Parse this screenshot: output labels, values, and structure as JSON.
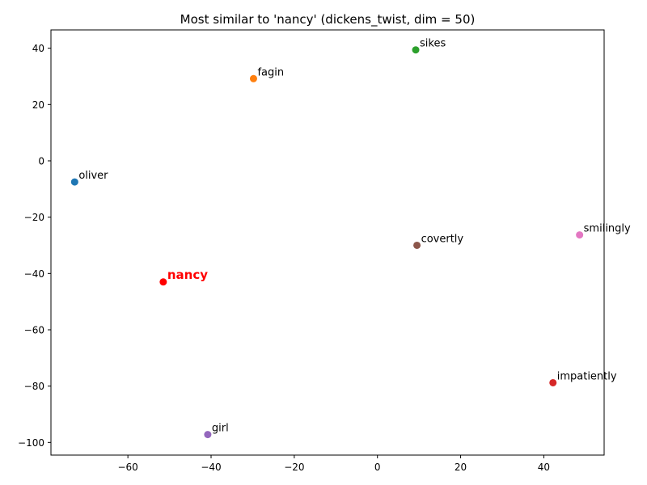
{
  "chart_data": {
    "type": "scatter",
    "title": "Most similar to 'nancy' (dickens_twist, dim = 50)",
    "xlabel": "",
    "ylabel": "",
    "xlim": [
      -78.5,
      54.5
    ],
    "ylim": [
      -104.5,
      46.5
    ],
    "xticks": [
      -60,
      -40,
      -20,
      0,
      20,
      40
    ],
    "yticks": [
      -100,
      -80,
      -60,
      -40,
      -20,
      0,
      20,
      40
    ],
    "xtick_labels": [
      "−60",
      "−40",
      "−20",
      "0",
      "20",
      "40"
    ],
    "ytick_labels": [
      "−100",
      "−80",
      "−60",
      "−40",
      "−20",
      "0",
      "20",
      "40"
    ],
    "grid": false,
    "points": [
      {
        "label": "oliver",
        "x": -72.8,
        "y": -7.5,
        "color": "#1f77b4",
        "highlight": false
      },
      {
        "label": "fagin",
        "x": -29.8,
        "y": 29.2,
        "color": "#ff7f0e",
        "highlight": false
      },
      {
        "label": "sikes",
        "x": 9.2,
        "y": 39.4,
        "color": "#2ca02c",
        "highlight": false
      },
      {
        "label": "impatiently",
        "x": 42.2,
        "y": -78.8,
        "color": "#d62728",
        "highlight": false
      },
      {
        "label": "girl",
        "x": -40.8,
        "y": -97.2,
        "color": "#9467bd",
        "highlight": false
      },
      {
        "label": "covertly",
        "x": 9.5,
        "y": -30.0,
        "color": "#8c564b",
        "highlight": false
      },
      {
        "label": "smilingly",
        "x": 48.6,
        "y": -26.3,
        "color": "#e377c2",
        "highlight": false
      },
      {
        "label": "nancy",
        "x": -51.5,
        "y": -43.0,
        "color": "#ff0000",
        "highlight": true
      }
    ]
  }
}
